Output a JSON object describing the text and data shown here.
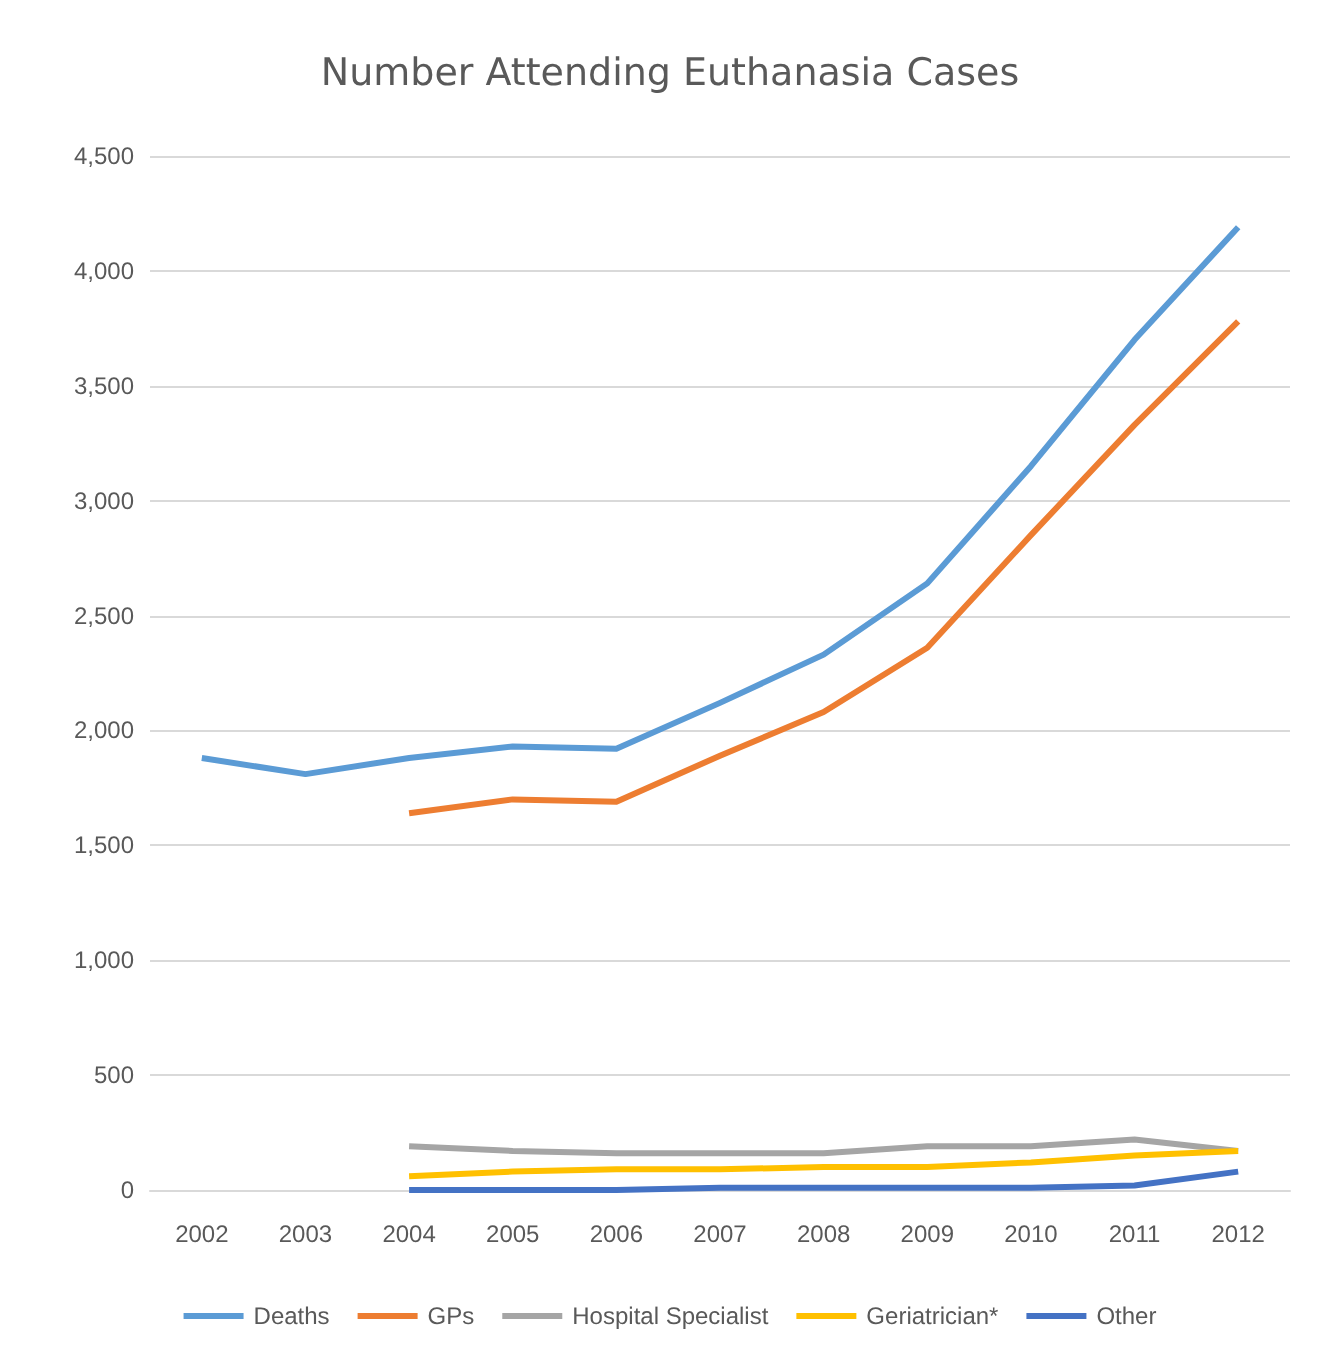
{
  "chart_data": {
    "type": "line",
    "title": "Number Attending Euthanasia Cases",
    "categories": [
      "2002",
      "2003",
      "2004",
      "2005",
      "2006",
      "2007",
      "2008",
      "2009",
      "2010",
      "2011",
      "2012"
    ],
    "series": [
      {
        "name": "Deaths",
        "color": "#5b9bd5",
        "values": [
          1880,
          1810,
          1880,
          1930,
          1920,
          2120,
          2330,
          2640,
          3150,
          3700,
          4190
        ]
      },
      {
        "name": "GPs",
        "color": "#ed7d31",
        "values": [
          null,
          null,
          1640,
          1700,
          1690,
          1890,
          2080,
          2360,
          2850,
          3330,
          3780
        ]
      },
      {
        "name": "Hospital Specialist",
        "color": "#a5a5a5",
        "values": [
          null,
          null,
          190,
          170,
          160,
          160,
          160,
          190,
          190,
          220,
          170
        ]
      },
      {
        "name": "Geriatrician*",
        "color": "#ffc000",
        "values": [
          null,
          null,
          60,
          80,
          90,
          90,
          100,
          100,
          120,
          150,
          170
        ]
      },
      {
        "name": "Other",
        "color": "#4472c4",
        "values": [
          null,
          null,
          0,
          0,
          0,
          10,
          10,
          10,
          10,
          20,
          80
        ]
      }
    ],
    "ylim": [
      0,
      4500
    ],
    "yticks": [
      0,
      500,
      {
        "value": 1000,
        "label": "1,000"
      },
      {
        "value": 1500,
        "label": "1,500"
      },
      {
        "value": 2000,
        "label": "2,000"
      },
      {
        "value": 2500,
        "label": "2,500"
      },
      {
        "value": 3000,
        "label": "3,000"
      },
      {
        "value": 3500,
        "label": "3,500"
      },
      {
        "value": 4000,
        "label": "4,000"
      },
      {
        "value": 4500,
        "label": "4,500"
      }
    ],
    "grid": "y",
    "legend": "bottom",
    "marker": "none",
    "line_style": "solid"
  }
}
